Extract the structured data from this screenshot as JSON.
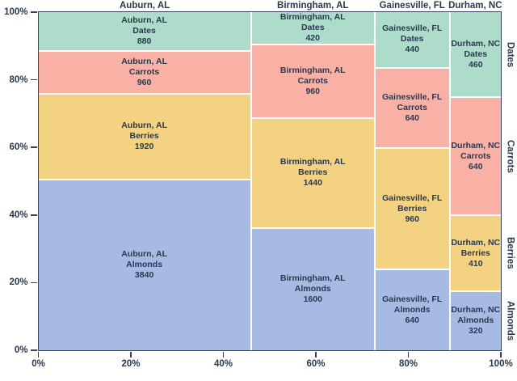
{
  "figure": {
    "background": "#ffffff",
    "axis_color": "#35445e",
    "text_color": "#2a3950",
    "gap_color": "#ffffff"
  },
  "chart_data": {
    "type": "bar",
    "subtype": "mosaic-marimekko",
    "title": "",
    "columns": [
      "Auburn, AL",
      "Birmingham, AL",
      "Gainesville, FL",
      "Durham, NC"
    ],
    "rows_top_to_bottom": [
      "Dates",
      "Carrots",
      "Berries",
      "Almonds"
    ],
    "series": [
      {
        "name": "Dates",
        "color": "#aedccb",
        "values": [
          880,
          420,
          440,
          460
        ]
      },
      {
        "name": "Carrots",
        "color": "#f9b1a6",
        "values": [
          960,
          960,
          640,
          640
        ]
      },
      {
        "name": "Berries",
        "color": "#f3d282",
        "values": [
          1920,
          1440,
          960,
          410
        ]
      },
      {
        "name": "Almonds",
        "color": "#a6bae3",
        "values": [
          3840,
          1600,
          640,
          320
        ]
      }
    ],
    "column_totals": [
      7600,
      4420,
      2680,
      1830
    ],
    "grand_total": 16530,
    "x_ticks": [
      "0%",
      "20%",
      "40%",
      "60%",
      "80%",
      "100%"
    ],
    "y_ticks": [
      "0%",
      "20%",
      "40%",
      "60%",
      "80%",
      "100%"
    ],
    "x_range": [
      0,
      100
    ],
    "y_range": [
      0,
      100
    ],
    "grid": false,
    "legend": "none",
    "column_labels_position": "top",
    "row_labels_position": "right",
    "cell_label_lines": [
      "column name",
      "category name",
      "value"
    ]
  }
}
